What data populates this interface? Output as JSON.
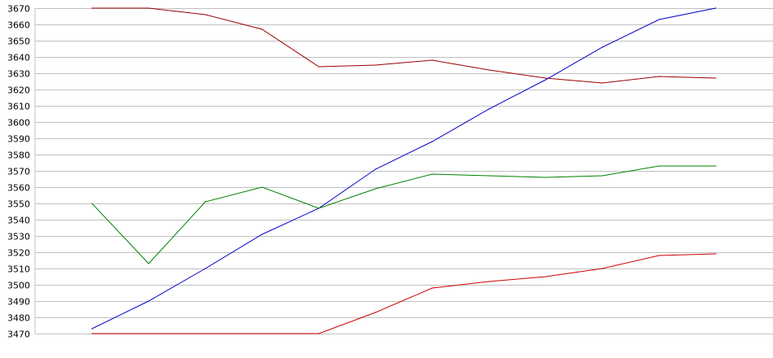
{
  "chart_data": {
    "type": "line",
    "title": "",
    "xlabel": "",
    "ylabel": "",
    "ylim": [
      3470,
      3670
    ],
    "yticks": [
      3470,
      3480,
      3490,
      3500,
      3510,
      3520,
      3530,
      3540,
      3550,
      3560,
      3570,
      3580,
      3590,
      3600,
      3610,
      3620,
      3630,
      3640,
      3650,
      3660,
      3670
    ],
    "x": [
      1,
      2,
      3,
      4,
      5,
      6,
      7,
      8,
      9,
      10,
      11,
      12
    ],
    "grid": "horizontal",
    "legend": "none",
    "series": [
      {
        "color": "#990000",
        "values": [
          3670,
          3670,
          3666,
          3657,
          3634,
          3635,
          3638,
          3632,
          3627,
          3624,
          3628,
          3627
        ]
      },
      {
        "color": "#0000cc",
        "values": [
          3473,
          3490,
          3510,
          3531,
          3547,
          3571,
          3588,
          3608,
          3626,
          3646,
          3663,
          3670
        ]
      },
      {
        "color": "#008000",
        "values": [
          3550,
          3513,
          3551,
          3560,
          3547,
          3559,
          3568,
          3567,
          3566,
          3567,
          3573,
          3573
        ]
      },
      {
        "color": "#cc0000",
        "values": [
          3470,
          3470,
          3470,
          3470,
          3470,
          3483,
          3498,
          3502,
          3505,
          3510,
          3518,
          3519
        ]
      }
    ]
  }
}
